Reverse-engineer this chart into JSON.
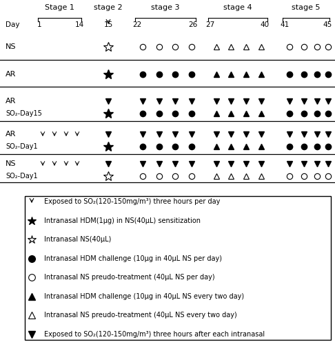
{
  "figsize": [
    4.86,
    5.0
  ],
  "dpi": 100,
  "stage_labels": [
    "Stage 1",
    "stage 2",
    "stage 3",
    "stage 4",
    "stage 5"
  ],
  "day_labels": [
    "1",
    "14",
    "15",
    "22",
    "26",
    "27",
    "40",
    "41",
    "45"
  ],
  "legend_items": [
    {
      "symbol": "so2_arrow",
      "text": "Exposed to SO₂(120-150mg/m³) three hours per day"
    },
    {
      "symbol": "filled_star",
      "text": "Intranasal HDM(1μg) in NS(40μL) sensitization"
    },
    {
      "symbol": "open_star",
      "text": "Intranasal NS(40μL)"
    },
    {
      "symbol": "filled_circle",
      "text": "Intranasal HDM challenge (10μg in 40μL NS per day)"
    },
    {
      "symbol": "open_circle",
      "text": "Intranasal NS preudo-treatment (40μL NS per day)"
    },
    {
      "symbol": "filled_triangle",
      "text": "Intranasal HDM challenge (10μg in 40μL NS every two day)"
    },
    {
      "symbol": "open_triangle",
      "text": "Intranasal NS preudo-treatment (40μL NS every two day)"
    },
    {
      "symbol": "so2_heart",
      "text": "Exposed to SO₂(120-150mg/m³) three hours after each intranasal"
    }
  ],
  "rows": [
    {
      "label1": "NS",
      "label2": "",
      "sub1": {
        "s1": [],
        "s2": [
          "open_star"
        ],
        "s3": [
          "open_circle",
          "open_circle",
          "open_circle",
          "open_circle"
        ],
        "s4": [
          "open_triangle",
          "open_triangle",
          "open_triangle",
          "open_triangle"
        ],
        "s5": [
          "open_circle",
          "open_circle",
          "open_circle",
          "open_circle"
        ]
      },
      "sub2": null
    },
    {
      "label1": "AR",
      "label2": "",
      "sub1": {
        "s1": [],
        "s2": [
          "filled_star"
        ],
        "s3": [
          "filled_circle",
          "filled_circle",
          "filled_circle",
          "filled_circle"
        ],
        "s4": [
          "filled_triangle",
          "filled_triangle",
          "filled_triangle",
          "filled_triangle"
        ],
        "s5": [
          "filled_circle",
          "filled_circle",
          "filled_circle",
          "filled_circle"
        ]
      },
      "sub2": null
    },
    {
      "label1": "AR",
      "label2": "SO₂-Day15",
      "sub1": {
        "s1": [],
        "s2": [
          "so2_heart"
        ],
        "s3": [
          "so2_heart",
          "so2_heart",
          "so2_heart",
          "so2_heart"
        ],
        "s4": [
          "so2_heart",
          "so2_heart",
          "so2_heart",
          "so2_heart"
        ],
        "s5": [
          "so2_heart",
          "so2_heart",
          "so2_heart",
          "so2_heart"
        ]
      },
      "sub2": {
        "s1": [],
        "s2": [
          "filled_star"
        ],
        "s3": [
          "filled_circle",
          "filled_circle",
          "filled_circle",
          "filled_circle"
        ],
        "s4": [
          "filled_triangle",
          "filled_triangle",
          "filled_triangle",
          "filled_triangle"
        ],
        "s5": [
          "filled_circle",
          "filled_circle",
          "filled_circle",
          "filled_circle"
        ]
      }
    },
    {
      "label1": "AR",
      "label2": "SO₂-Day1",
      "sub1": {
        "s1": [
          "so2_arrow",
          "so2_arrow",
          "so2_arrow",
          "so2_arrow"
        ],
        "s2": [
          "so2_heart"
        ],
        "s3": [
          "so2_heart",
          "so2_heart",
          "so2_heart",
          "so2_heart"
        ],
        "s4": [
          "so2_heart",
          "so2_heart",
          "so2_heart",
          "so2_heart"
        ],
        "s5": [
          "so2_heart",
          "so2_heart",
          "so2_heart",
          "so2_heart"
        ]
      },
      "sub2": {
        "s1": [],
        "s2": [
          "filled_star"
        ],
        "s3": [
          "filled_circle",
          "filled_circle",
          "filled_circle",
          "filled_circle"
        ],
        "s4": [
          "filled_triangle",
          "filled_triangle",
          "filled_triangle",
          "filled_triangle"
        ],
        "s5": [
          "filled_circle",
          "filled_circle",
          "filled_circle",
          "filled_circle"
        ]
      }
    },
    {
      "label1": "NS",
      "label2": "SO₂-Day1",
      "sub1": {
        "s1": [
          "so2_arrow",
          "so2_arrow",
          "so2_arrow",
          "so2_arrow"
        ],
        "s2": [
          "so2_heart"
        ],
        "s3": [
          "so2_heart",
          "so2_heart",
          "so2_heart",
          "so2_heart"
        ],
        "s4": [
          "so2_heart",
          "so2_heart",
          "so2_heart",
          "so2_heart"
        ],
        "s5": [
          "so2_heart",
          "so2_heart",
          "so2_heart",
          "so2_heart"
        ]
      },
      "sub2": {
        "s1": [],
        "s2": [
          "open_star"
        ],
        "s3": [
          "open_circle",
          "open_circle",
          "open_circle",
          "open_circle"
        ],
        "s4": [
          "open_triangle",
          "open_triangle",
          "open_triangle",
          "open_triangle"
        ],
        "s5": [
          "open_circle",
          "open_circle",
          "open_circle",
          "open_circle"
        ]
      }
    }
  ]
}
